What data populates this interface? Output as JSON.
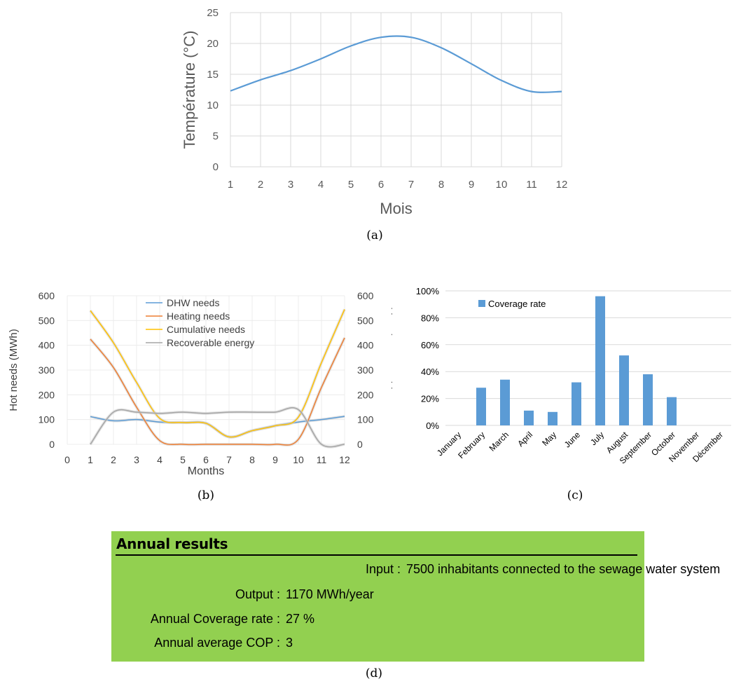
{
  "chart_data": [
    {
      "id": "a",
      "type": "line",
      "caption": "(a)",
      "xlabel": "Mois",
      "ylabel": "Température (°C)",
      "xlim": [
        1,
        12
      ],
      "ylim": [
        0,
        25
      ],
      "xticks": [
        "1",
        "2",
        "3",
        "4",
        "5",
        "6",
        "7",
        "8",
        "9",
        "10",
        "11",
        "12"
      ],
      "yticks": [
        "0",
        "5",
        "10",
        "15",
        "20",
        "25"
      ],
      "grid": true,
      "series": [
        {
          "color": "#5b9bd5",
          "x": [
            1,
            2,
            3,
            4,
            5,
            6,
            7,
            8,
            9,
            10,
            11,
            12
          ],
          "values": [
            12.3,
            14.1,
            15.6,
            17.5,
            19.6,
            21.0,
            21.0,
            19.3,
            16.7,
            14.0,
            12.2,
            12.2
          ]
        }
      ]
    },
    {
      "id": "b",
      "type": "line",
      "caption": "(b)",
      "xlabel": "Months",
      "ylabel": "Hot needs (MWh)",
      "y2label": "Recoverable energy (MWh)",
      "xlim": [
        0,
        12
      ],
      "ylim": [
        0,
        600
      ],
      "y2lim": [
        0,
        600
      ],
      "xticks": [
        "0",
        "1",
        "2",
        "3",
        "4",
        "5",
        "6",
        "7",
        "8",
        "9",
        "10",
        "11",
        "12"
      ],
      "yticks": [
        "0",
        "100",
        "200",
        "300",
        "400",
        "500",
        "600"
      ],
      "grid": true,
      "legend_position": "top-center",
      "series": [
        {
          "name": "DHW needs",
          "color": "#5b9bd5",
          "x": [
            1,
            2,
            3,
            4,
            5,
            6,
            7,
            8,
            9,
            10,
            11,
            12
          ],
          "values": [
            112,
            95,
            100,
            90,
            88,
            85,
            30,
            55,
            75,
            90,
            100,
            113
          ]
        },
        {
          "name": "Heating needs",
          "color": "#ed7d31",
          "x": [
            1,
            2,
            3,
            4,
            5,
            6,
            7,
            8,
            9,
            10,
            11,
            12
          ],
          "values": [
            425,
            310,
            150,
            15,
            0,
            0,
            0,
            0,
            0,
            20,
            230,
            430
          ]
        },
        {
          "name": "Cumulative needs",
          "color": "#ffc000",
          "x": [
            1,
            2,
            3,
            4,
            5,
            6,
            7,
            8,
            9,
            10,
            11,
            12
          ],
          "values": [
            540,
            410,
            250,
            105,
            88,
            85,
            30,
            55,
            75,
            110,
            330,
            545
          ]
        },
        {
          "name": "Recoverable energy",
          "color": "#a5a5a5",
          "x": [
            1,
            2,
            3,
            4,
            5,
            6,
            7,
            8,
            9,
            10,
            11,
            12
          ],
          "values": [
            0,
            130,
            130,
            125,
            130,
            125,
            130,
            130,
            130,
            140,
            0,
            0
          ]
        }
      ]
    },
    {
      "id": "c",
      "type": "bar",
      "caption": "(c)",
      "ylim": [
        0,
        1
      ],
      "yticks": [
        "0%",
        "20%",
        "40%",
        "60%",
        "80%",
        "100%"
      ],
      "grid": true,
      "legend_position": "top-left",
      "categories": [
        "January",
        "February",
        "March",
        "April",
        "May",
        "June",
        "July",
        "August",
        "September",
        "October",
        "November",
        "Décember"
      ],
      "series": [
        {
          "name": "Coverage rate",
          "color": "#5b9bd5",
          "values": [
            0,
            0.28,
            0.34,
            0.11,
            0.1,
            0.32,
            0.96,
            0.52,
            0.38,
            0.21,
            0,
            0
          ]
        }
      ]
    }
  ],
  "results": {
    "caption": "(d)",
    "heading": "Annual results",
    "rows": [
      {
        "label": "Input :",
        "value": "7500 inhabitants connected to the sewage water system"
      },
      {
        "label": "Output :",
        "value": "1170 MWh/year"
      },
      {
        "label": "Annual Coverage rate :",
        "value": "27 %"
      },
      {
        "label": "Annual average COP :",
        "value": "3"
      }
    ],
    "background": "#92d050"
  }
}
